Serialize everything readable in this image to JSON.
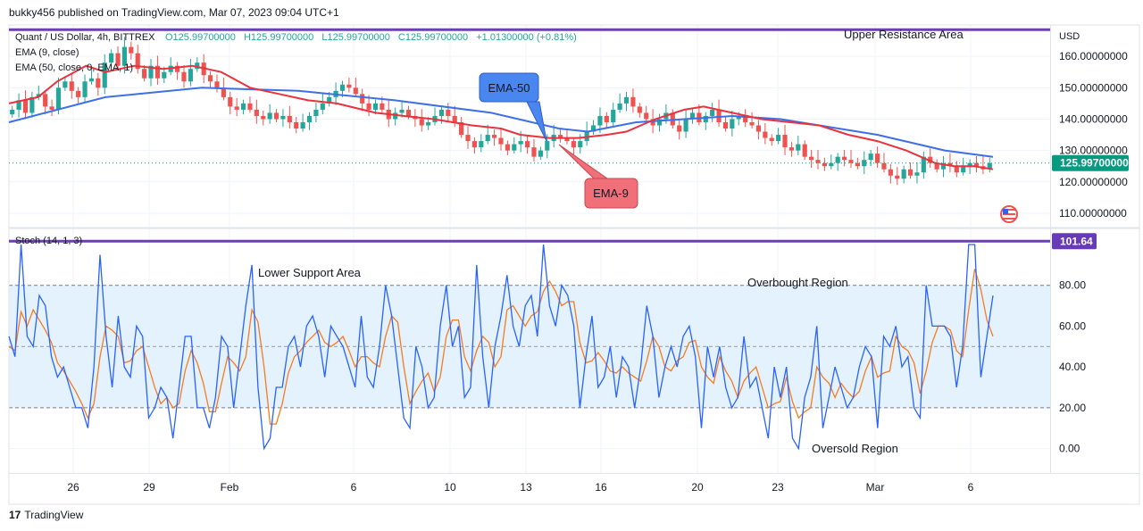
{
  "header": {
    "published_by": "bukky456 published on TradingView.com, Mar 07, 2023 09:04 UTC+1"
  },
  "footer": {
    "brand": "TradingView"
  },
  "colors": {
    "up": "#26a69a",
    "down": "#ef5350",
    "ema9": "#e8323e",
    "ema50": "#3d6fe6",
    "stoch_k": "#2962ff",
    "stoch_d": "#f57c1f",
    "zone_line": "#6c3fb5",
    "band_fill": "#e3f2fd",
    "price_label": "#089981",
    "stoch_label": "#673ab7"
  },
  "chart_data": [
    {
      "type": "candlestick",
      "title": "Quant / US Dollar, 4h, BITTREX",
      "ohlc_text": {
        "o": "O125.99700000",
        "h": "H125.99700000",
        "l": "L125.99700000",
        "c": "C125.99700000",
        "chg": "+1.01300000 (+0.81%)"
      },
      "indicators": [
        "EMA (9, close)",
        "EMA (50, close, 0, EMA, 1)"
      ],
      "currency": "USD",
      "y_ticks": [
        "160.00000000",
        "150.00000000",
        "140.00000000",
        "130.00000000",
        "120.00000000",
        "110.00000000"
      ],
      "ylim": [
        106,
        170
      ],
      "x_ticks": [
        "26",
        "29",
        "Feb",
        "6",
        "10",
        "13",
        "16",
        "20",
        "23",
        "Mar",
        "6"
      ],
      "last_price": "125.99700000",
      "annotations": {
        "upper_zone": "Upper Resistance Area",
        "upper_zone_level": 168.5,
        "ema50_callout": "EMA-50",
        "ema9_callout": "EMA-9"
      },
      "ema9_points": [
        [
          0,
          145
        ],
        [
          3,
          147
        ],
        [
          5,
          152
        ],
        [
          8,
          157
        ],
        [
          10,
          155
        ],
        [
          13,
          157
        ],
        [
          16,
          156
        ],
        [
          19,
          157
        ],
        [
          22,
          155
        ],
        [
          25,
          150
        ],
        [
          28,
          148
        ],
        [
          31,
          146
        ],
        [
          34,
          145
        ],
        [
          38,
          142
        ],
        [
          41,
          141
        ],
        [
          44,
          140
        ],
        [
          48,
          138
        ],
        [
          51,
          137
        ],
        [
          53,
          135
        ],
        [
          56,
          134
        ],
        [
          59,
          134
        ],
        [
          62,
          135
        ],
        [
          64,
          136
        ],
        [
          67,
          140
        ],
        [
          70,
          143
        ],
        [
          72,
          144
        ],
        [
          75,
          142
        ],
        [
          78,
          140
        ],
        [
          81,
          139
        ],
        [
          84,
          138
        ],
        [
          87,
          135
        ],
        [
          90,
          133
        ],
        [
          93,
          130
        ],
        [
          96,
          126
        ],
        [
          98,
          125
        ],
        [
          100,
          125
        ],
        [
          102,
          124
        ]
      ],
      "ema50_points": [
        [
          0,
          139
        ],
        [
          10,
          147
        ],
        [
          20,
          150
        ],
        [
          30,
          149
        ],
        [
          40,
          146
        ],
        [
          50,
          142
        ],
        [
          57,
          137
        ],
        [
          60,
          136
        ],
        [
          65,
          139
        ],
        [
          70,
          140
        ],
        [
          75,
          141
        ],
        [
          80,
          140
        ],
        [
          90,
          135
        ],
        [
          97,
          130
        ],
        [
          102,
          128
        ]
      ],
      "candles": [
        [
          143,
          146,
          142,
          147,
          148,
          144,
          143,
          150,
          152,
          149,
          147,
          152,
          153,
          150
        ],
        [
          158,
          161,
          157,
          163,
          161,
          156,
          153,
          157,
          153,
          155,
          157,
          155,
          152,
          156
        ],
        [
          158,
          154,
          152,
          150,
          147,
          144,
          143,
          145,
          143,
          141,
          140,
          142,
          140,
          141
        ],
        [
          139,
          137,
          139,
          141,
          143,
          145,
          147,
          149,
          151,
          150,
          148,
          145,
          143,
          145
        ],
        [
          143,
          140,
          142,
          143,
          141,
          140,
          138,
          139,
          141,
          143,
          141,
          139,
          135,
          133
        ],
        [
          131,
          133,
          135,
          134,
          132,
          130,
          132,
          133,
          131,
          128,
          130,
          133,
          135,
          134
        ],
        [
          133,
          131,
          133,
          136,
          138,
          141,
          139,
          143,
          145,
          147,
          144,
          142,
          140,
          138
        ],
        [
          140,
          142,
          138,
          136,
          140,
          142,
          139,
          141,
          143,
          139,
          137,
          140,
          141,
          139
        ],
        [
          138,
          136,
          134,
          133,
          135,
          131,
          130,
          132,
          128,
          127,
          126,
          125,
          126,
          128
        ],
        [
          127,
          126,
          125,
          127,
          129,
          126,
          124,
          122,
          121,
          124,
          122,
          123,
          128,
          126
        ],
        [
          124,
          126,
          125,
          123,
          125,
          126,
          125,
          124,
          126
        ]
      ]
    },
    {
      "type": "line",
      "title": "Stoch (14, 1, 3)",
      "y_ticks": [
        "80.00",
        "60.00",
        "40.00",
        "20.00",
        "0.00"
      ],
      "ylim": [
        -12,
        107
      ],
      "upper_band": 80,
      "lower_band": 20,
      "zone_level": 101.64,
      "zone_label": "101.64",
      "annotations": {
        "lower_zone": "Lower Support Area",
        "overbought": "Overbought Region",
        "oversold": "Oversold Region"
      },
      "k_values": [
        55,
        45,
        100,
        55,
        50,
        75,
        70,
        45,
        35,
        40,
        30,
        20,
        20,
        10,
        40,
        95,
        55,
        30,
        65,
        40,
        35,
        60,
        55,
        15,
        20,
        30,
        25,
        5,
        30,
        55,
        55,
        20,
        20,
        10,
        25,
        55,
        50,
        20,
        45,
        70,
        90,
        30,
        0,
        5,
        30,
        30,
        50,
        55,
        40,
        60,
        65,
        55,
        35,
        60,
        55,
        50,
        40,
        30,
        65,
        35,
        30,
        50,
        80,
        65,
        40,
        15,
        10,
        50,
        40,
        20,
        25,
        60,
        80,
        50,
        60,
        25,
        30,
        90,
        45,
        20,
        50,
        65,
        85,
        60,
        50,
        70,
        75,
        55,
        100,
        70,
        60,
        80,
        75,
        60,
        20,
        45,
        65,
        30,
        35,
        50,
        25,
        45,
        40,
        20,
        40,
        70,
        55,
        25,
        40,
        50,
        40,
        55,
        60,
        45,
        10,
        50,
        35,
        50,
        30,
        20,
        25,
        55,
        30,
        35,
        20,
        5,
        40,
        25,
        40,
        5,
        0,
        25,
        35,
        60,
        10,
        25,
        40,
        30,
        20,
        25,
        40,
        50,
        45,
        10,
        55,
        50,
        60,
        40,
        45,
        20,
        15,
        80,
        60,
        60,
        60,
        55,
        30,
        50,
        100,
        100,
        35,
        55,
        75
      ],
      "d_values": [
        50,
        48,
        67,
        60,
        68,
        63,
        58,
        52,
        42,
        38,
        33,
        28,
        22,
        15,
        22,
        45,
        60,
        58,
        55,
        42,
        43,
        48,
        50,
        40,
        30,
        22,
        25,
        20,
        22,
        38,
        48,
        42,
        32,
        18,
        18,
        32,
        45,
        42,
        38,
        45,
        68,
        62,
        40,
        12,
        12,
        22,
        37,
        45,
        48,
        52,
        55,
        58,
        52,
        50,
        52,
        55,
        48,
        40,
        45,
        45,
        42,
        40,
        55,
        65,
        62,
        40,
        22,
        28,
        33,
        37,
        28,
        35,
        55,
        63,
        63,
        45,
        38,
        48,
        55,
        52,
        40,
        45,
        68,
        70,
        65,
        60,
        65,
        67,
        77,
        82,
        77,
        70,
        72,
        72,
        52,
        42,
        43,
        47,
        43,
        38,
        37,
        40,
        37,
        35,
        33,
        43,
        55,
        50,
        40,
        38,
        43,
        45,
        52,
        53,
        40,
        35,
        32,
        45,
        38,
        33,
        25,
        33,
        37,
        40,
        30,
        20,
        22,
        23,
        35,
        23,
        15,
        18,
        20,
        40,
        35,
        32,
        25,
        32,
        28,
        25,
        28,
        38,
        45,
        35,
        37,
        38,
        55,
        50,
        48,
        42,
        27,
        38,
        52,
        60,
        60,
        58,
        48,
        45,
        68,
        88,
        78,
        63,
        55
      ]
    }
  ]
}
